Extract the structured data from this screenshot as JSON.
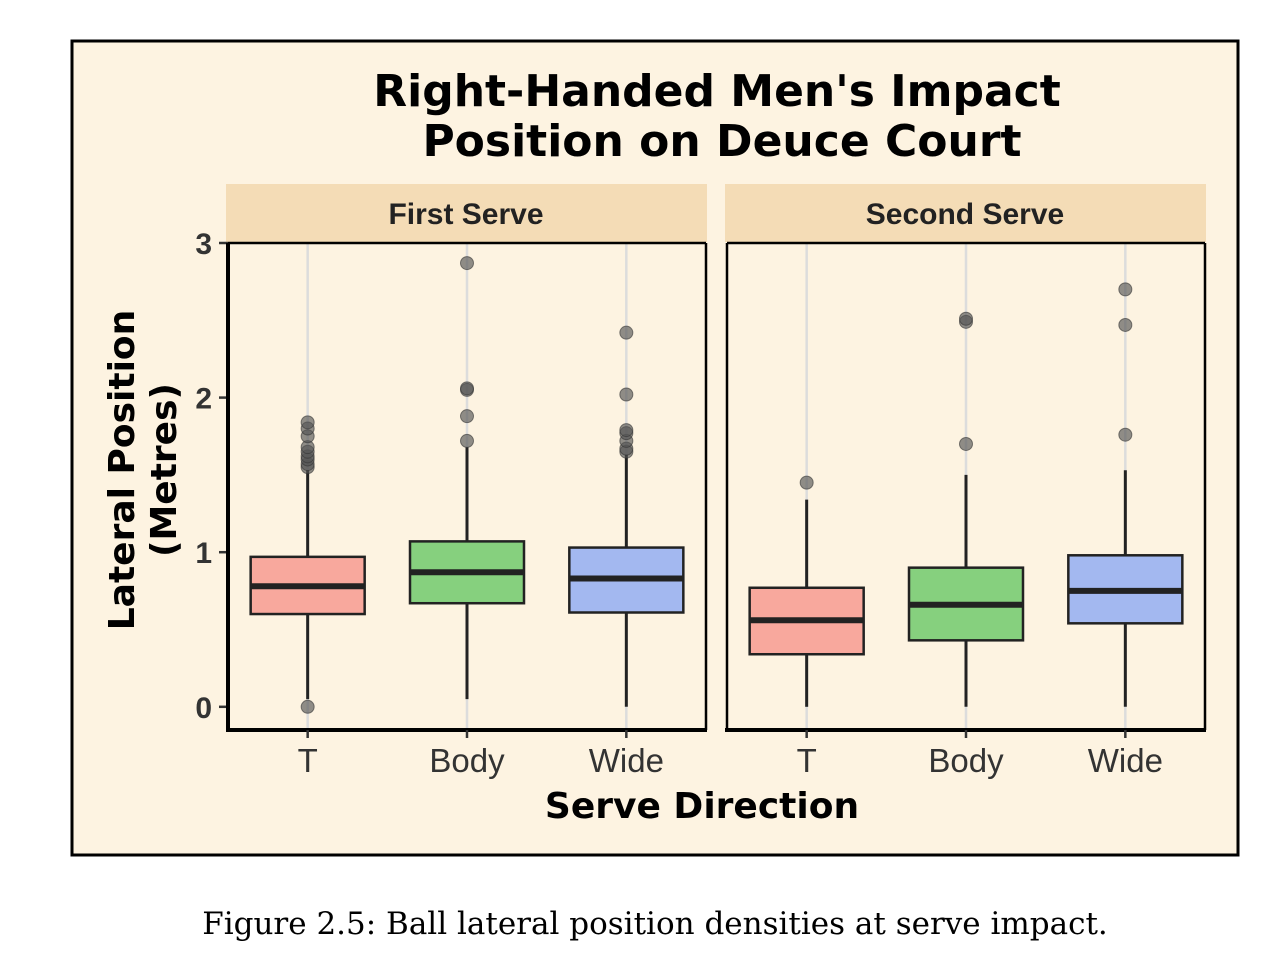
{
  "chart_data": {
    "type": "boxplot",
    "title_lines": [
      "Right-Handed Men's Impact",
      "Position on Deuce Court"
    ],
    "xlabel": "Serve Direction",
    "ylabel_lines": [
      "Lateral Position",
      "(Metres)"
    ],
    "ylim": [
      -0.15,
      3.0
    ],
    "yticks": [
      0,
      1,
      2,
      3
    ],
    "categories": [
      "T",
      "Body",
      "Wide"
    ],
    "colors": {
      "T": "#f8a89d",
      "Body": "#86d07e",
      "Wide": "#a3b8f0"
    },
    "background": "#fdf3e1",
    "strip_color": "#f4dcb6",
    "grid": "vertical at categories",
    "panels": [
      {
        "label": "First Serve",
        "boxes": [
          {
            "category": "T",
            "q1": 0.6,
            "median": 0.78,
            "q3": 0.97,
            "whisker_low": 0.05,
            "whisker_high": 1.53,
            "outliers": [
              0.0,
              1.55,
              1.57,
              1.6,
              1.62,
              1.65,
              1.68,
              1.75,
              1.8,
              1.84
            ]
          },
          {
            "category": "Body",
            "q1": 0.67,
            "median": 0.87,
            "q3": 1.07,
            "whisker_low": 0.05,
            "whisker_high": 1.68,
            "outliers": [
              1.72,
              1.88,
              2.05,
              2.06,
              2.87
            ]
          },
          {
            "category": "Wide",
            "q1": 0.61,
            "median": 0.83,
            "q3": 1.03,
            "whisker_low": 0.0,
            "whisker_high": 1.63,
            "outliers": [
              1.65,
              1.67,
              1.72,
              1.77,
              1.79,
              2.02,
              2.42
            ]
          }
        ]
      },
      {
        "label": "Second Serve",
        "boxes": [
          {
            "category": "T",
            "q1": 0.34,
            "median": 0.56,
            "q3": 0.77,
            "whisker_low": 0.0,
            "whisker_high": 1.34,
            "outliers": [
              1.45
            ]
          },
          {
            "category": "Body",
            "q1": 0.43,
            "median": 0.66,
            "q3": 0.9,
            "whisker_low": 0.0,
            "whisker_high": 1.5,
            "outliers": [
              1.7,
              2.49,
              2.51
            ]
          },
          {
            "category": "Wide",
            "q1": 0.54,
            "median": 0.75,
            "q3": 0.98,
            "whisker_low": 0.0,
            "whisker_high": 1.53,
            "outliers": [
              1.76,
              2.47,
              2.7
            ]
          }
        ]
      }
    ]
  },
  "caption": "Figure 2.5: Ball lateral position densities at serve impact."
}
